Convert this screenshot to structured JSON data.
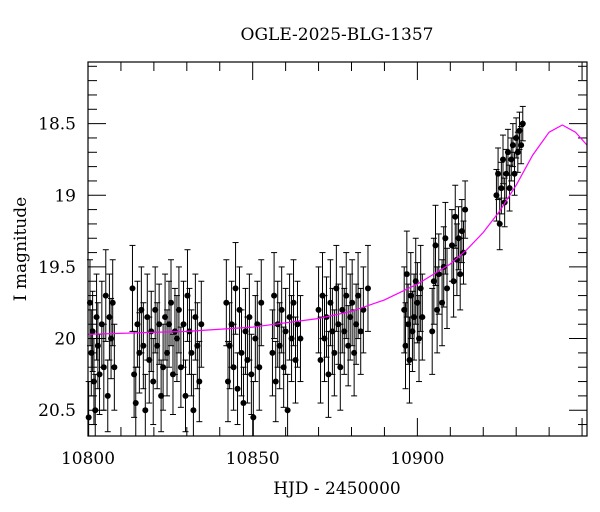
{
  "chart_data": {
    "type": "scatter",
    "title": "OGLE-2025-BLG-1357",
    "xlabel": "HJD - 2450000",
    "ylabel": "I magnitude",
    "xlim": [
      10800,
      10951.5
    ],
    "ylim": [
      20.68,
      18.07
    ],
    "y_inverted": true,
    "xticks": [
      10800,
      10850,
      10900
    ],
    "xtick_labels": [
      "10800",
      "10850",
      "10900"
    ],
    "yticks": [
      18.5,
      19,
      19.5,
      20,
      20.5
    ],
    "ytick_labels": [
      "18.5",
      "19",
      "19.5",
      "20",
      "20.5"
    ],
    "grid": false,
    "colors": {
      "data": "#000000",
      "errorbar": "#000000",
      "model": "#ff00ff"
    },
    "series": [
      {
        "name": "data",
        "points": [
          [
            10800.2,
            20.55,
            0.25
          ],
          [
            10800.6,
            19.75,
            0.3
          ],
          [
            10801.0,
            20.1,
            0.3
          ],
          [
            10801.4,
            19.95,
            0.28
          ],
          [
            10801.8,
            20.3,
            0.3
          ],
          [
            10802.2,
            20.5,
            0.25
          ],
          [
            10802.6,
            19.85,
            0.3
          ],
          [
            10803.0,
            20.05,
            0.3
          ],
          [
            10803.5,
            20.25,
            0.28
          ],
          [
            10804.2,
            19.9,
            0.3
          ],
          [
            10804.8,
            20.2,
            0.3
          ],
          [
            10805.4,
            19.7,
            0.32
          ],
          [
            10806.0,
            20.4,
            0.25
          ],
          [
            10806.5,
            19.85,
            0.3
          ],
          [
            10807.0,
            20.0,
            0.28
          ],
          [
            10807.5,
            19.75,
            0.3
          ],
          [
            10808.0,
            20.2,
            0.3
          ],
          [
            10813.5,
            19.65,
            0.3
          ],
          [
            10814.0,
            20.25,
            0.3
          ],
          [
            10814.5,
            20.45,
            0.25
          ],
          [
            10815.0,
            19.9,
            0.3
          ],
          [
            10815.6,
            20.1,
            0.28
          ],
          [
            10816.2,
            19.8,
            0.3
          ],
          [
            10816.8,
            20.05,
            0.3
          ],
          [
            10817.4,
            20.5,
            0.25
          ],
          [
            10818.0,
            19.85,
            0.3
          ],
          [
            10818.6,
            20.15,
            0.3
          ],
          [
            10819.2,
            19.95,
            0.28
          ],
          [
            10819.8,
            20.3,
            0.3
          ],
          [
            10820.4,
            19.8,
            0.3
          ],
          [
            10821.0,
            20.05,
            0.3
          ],
          [
            10821.6,
            19.9,
            0.28
          ],
          [
            10822.2,
            20.4,
            0.25
          ],
          [
            10822.8,
            20.2,
            0.3
          ],
          [
            10823.4,
            19.85,
            0.3
          ],
          [
            10824.0,
            20.1,
            0.3
          ],
          [
            10824.6,
            19.9,
            0.3
          ],
          [
            10825.2,
            19.75,
            0.3
          ],
          [
            10825.8,
            20.25,
            0.28
          ],
          [
            10826.4,
            19.95,
            0.3
          ],
          [
            10827.0,
            20.0,
            0.3
          ],
          [
            10827.6,
            19.8,
            0.3
          ],
          [
            10828.2,
            20.2,
            0.28
          ],
          [
            10829.0,
            19.9,
            0.3
          ],
          [
            10829.6,
            20.4,
            0.25
          ],
          [
            10830.2,
            19.7,
            0.32
          ],
          [
            10830.8,
            19.95,
            0.3
          ],
          [
            10831.4,
            20.1,
            0.3
          ],
          [
            10832.0,
            20.5,
            0.25
          ],
          [
            10832.6,
            19.85,
            0.3
          ],
          [
            10833.2,
            20.05,
            0.3
          ],
          [
            10833.8,
            20.3,
            0.28
          ],
          [
            10834.4,
            19.9,
            0.3
          ],
          [
            10842.0,
            19.75,
            0.3
          ],
          [
            10842.5,
            20.3,
            0.28
          ],
          [
            10843.0,
            20.05,
            0.3
          ],
          [
            10843.6,
            19.9,
            0.3
          ],
          [
            10844.2,
            20.2,
            0.3
          ],
          [
            10844.8,
            19.65,
            0.32
          ],
          [
            10845.4,
            20.35,
            0.25
          ],
          [
            10846.0,
            19.8,
            0.3
          ],
          [
            10846.6,
            20.1,
            0.3
          ],
          [
            10847.2,
            20.45,
            0.25
          ],
          [
            10847.8,
            19.95,
            0.3
          ],
          [
            10848.4,
            20.15,
            0.3
          ],
          [
            10849.0,
            19.85,
            0.3
          ],
          [
            10849.6,
            20.25,
            0.28
          ],
          [
            10850.2,
            20.55,
            0.25
          ],
          [
            10850.8,
            20.0,
            0.3
          ],
          [
            10851.4,
            19.9,
            0.3
          ],
          [
            10852.0,
            20.2,
            0.3
          ],
          [
            10852.6,
            19.75,
            0.3
          ],
          [
            10856.0,
            20.1,
            0.3
          ],
          [
            10856.5,
            19.7,
            0.3
          ],
          [
            10857.0,
            20.3,
            0.28
          ],
          [
            10857.6,
            19.9,
            0.3
          ],
          [
            10858.2,
            20.05,
            0.3
          ],
          [
            10858.8,
            19.8,
            0.3
          ],
          [
            10859.4,
            20.2,
            0.28
          ],
          [
            10860.0,
            19.95,
            0.3
          ],
          [
            10860.6,
            20.5,
            0.25
          ],
          [
            10861.2,
            19.85,
            0.3
          ],
          [
            10861.8,
            20.0,
            0.3
          ],
          [
            10862.4,
            19.75,
            0.3
          ],
          [
            10863.0,
            20.15,
            0.3
          ],
          [
            10863.6,
            19.9,
            0.3
          ],
          [
            10864.5,
            20.0,
            0.3
          ],
          [
            10870.0,
            19.8,
            0.3
          ],
          [
            10870.6,
            20.15,
            0.3
          ],
          [
            10871.2,
            19.7,
            0.3
          ],
          [
            10871.8,
            20.0,
            0.3
          ],
          [
            10872.4,
            19.85,
            0.28
          ],
          [
            10873.0,
            20.25,
            0.3
          ],
          [
            10873.6,
            19.75,
            0.3
          ],
          [
            10874.2,
            19.95,
            0.3
          ],
          [
            10874.8,
            20.1,
            0.3
          ],
          [
            10875.4,
            19.65,
            0.3
          ],
          [
            10876.0,
            19.9,
            0.28
          ],
          [
            10876.6,
            20.2,
            0.3
          ],
          [
            10877.2,
            19.8,
            0.3
          ],
          [
            10877.8,
            19.95,
            0.3
          ],
          [
            10878.4,
            19.7,
            0.3
          ],
          [
            10879.0,
            20.05,
            0.28
          ],
          [
            10879.6,
            19.85,
            0.3
          ],
          [
            10880.2,
            19.75,
            0.3
          ],
          [
            10880.8,
            20.1,
            0.3
          ],
          [
            10881.4,
            19.9,
            0.28
          ],
          [
            10882.0,
            19.7,
            0.3
          ],
          [
            10882.8,
            19.95,
            0.3
          ],
          [
            10883.6,
            19.8,
            0.3
          ],
          [
            10885.0,
            19.65,
            0.3
          ],
          [
            10896.0,
            19.8,
            0.3
          ],
          [
            10896.4,
            20.05,
            0.3
          ],
          [
            10896.8,
            19.55,
            0.3
          ],
          [
            10897.2,
            19.9,
            0.28
          ],
          [
            10897.6,
            20.15,
            0.3
          ],
          [
            10898.0,
            19.7,
            0.3
          ],
          [
            10898.5,
            19.95,
            0.28
          ],
          [
            10899.0,
            19.85,
            0.3
          ],
          [
            10899.5,
            19.6,
            0.3
          ],
          [
            10900.0,
            19.75,
            0.28
          ],
          [
            10900.5,
            20.0,
            0.3
          ],
          [
            10901.0,
            19.65,
            0.3
          ],
          [
            10901.5,
            19.85,
            0.3
          ],
          [
            10904.5,
            19.95,
            0.3
          ],
          [
            10905.0,
            19.6,
            0.3
          ],
          [
            10905.5,
            19.35,
            0.28
          ],
          [
            10906.0,
            19.8,
            0.3
          ],
          [
            10906.5,
            19.55,
            0.28
          ],
          [
            10907.5,
            19.75,
            0.3
          ],
          [
            10908.0,
            19.5,
            0.28
          ],
          [
            10908.5,
            19.3,
            0.25
          ],
          [
            10909.0,
            19.65,
            0.28
          ],
          [
            10910.5,
            19.35,
            0.25
          ],
          [
            10911.0,
            19.6,
            0.25
          ],
          [
            10911.5,
            19.15,
            0.22
          ],
          [
            10912.0,
            19.45,
            0.25
          ],
          [
            10912.5,
            19.3,
            0.22
          ],
          [
            10913.0,
            19.55,
            0.25
          ],
          [
            10913.5,
            19.25,
            0.22
          ],
          [
            10914.0,
            19.4,
            0.22
          ],
          [
            10914.5,
            19.1,
            0.2
          ],
          [
            10924.0,
            19.0,
            0.18
          ],
          [
            10924.5,
            18.85,
            0.18
          ],
          [
            10925.0,
            19.2,
            0.18
          ],
          [
            10925.5,
            18.95,
            0.18
          ],
          [
            10926.0,
            18.75,
            0.17
          ],
          [
            10926.5,
            19.05,
            0.17
          ],
          [
            10927.0,
            18.85,
            0.17
          ],
          [
            10927.5,
            18.7,
            0.16
          ],
          [
            10928.0,
            18.95,
            0.16
          ],
          [
            10928.5,
            18.75,
            0.15
          ],
          [
            10929.0,
            18.65,
            0.15
          ],
          [
            10929.5,
            18.85,
            0.15
          ],
          [
            10930.0,
            18.6,
            0.14
          ],
          [
            10930.5,
            18.7,
            0.14
          ],
          [
            10931.0,
            18.55,
            0.13
          ],
          [
            10931.5,
            18.65,
            0.13
          ],
          [
            10932.0,
            18.5,
            0.12
          ]
        ]
      },
      {
        "name": "model",
        "points": [
          [
            10800,
            19.97
          ],
          [
            10830,
            19.95
          ],
          [
            10850,
            19.92
          ],
          [
            10870,
            19.86
          ],
          [
            10880,
            19.81
          ],
          [
            10890,
            19.73
          ],
          [
            10900,
            19.62
          ],
          [
            10910,
            19.48
          ],
          [
            10915,
            19.38
          ],
          [
            10920,
            19.26
          ],
          [
            10925,
            19.11
          ],
          [
            10930,
            18.93
          ],
          [
            10935,
            18.72
          ],
          [
            10940,
            18.56
          ],
          [
            10944,
            18.51
          ],
          [
            10948,
            18.56
          ],
          [
            10951.5,
            18.65
          ]
        ]
      }
    ]
  }
}
